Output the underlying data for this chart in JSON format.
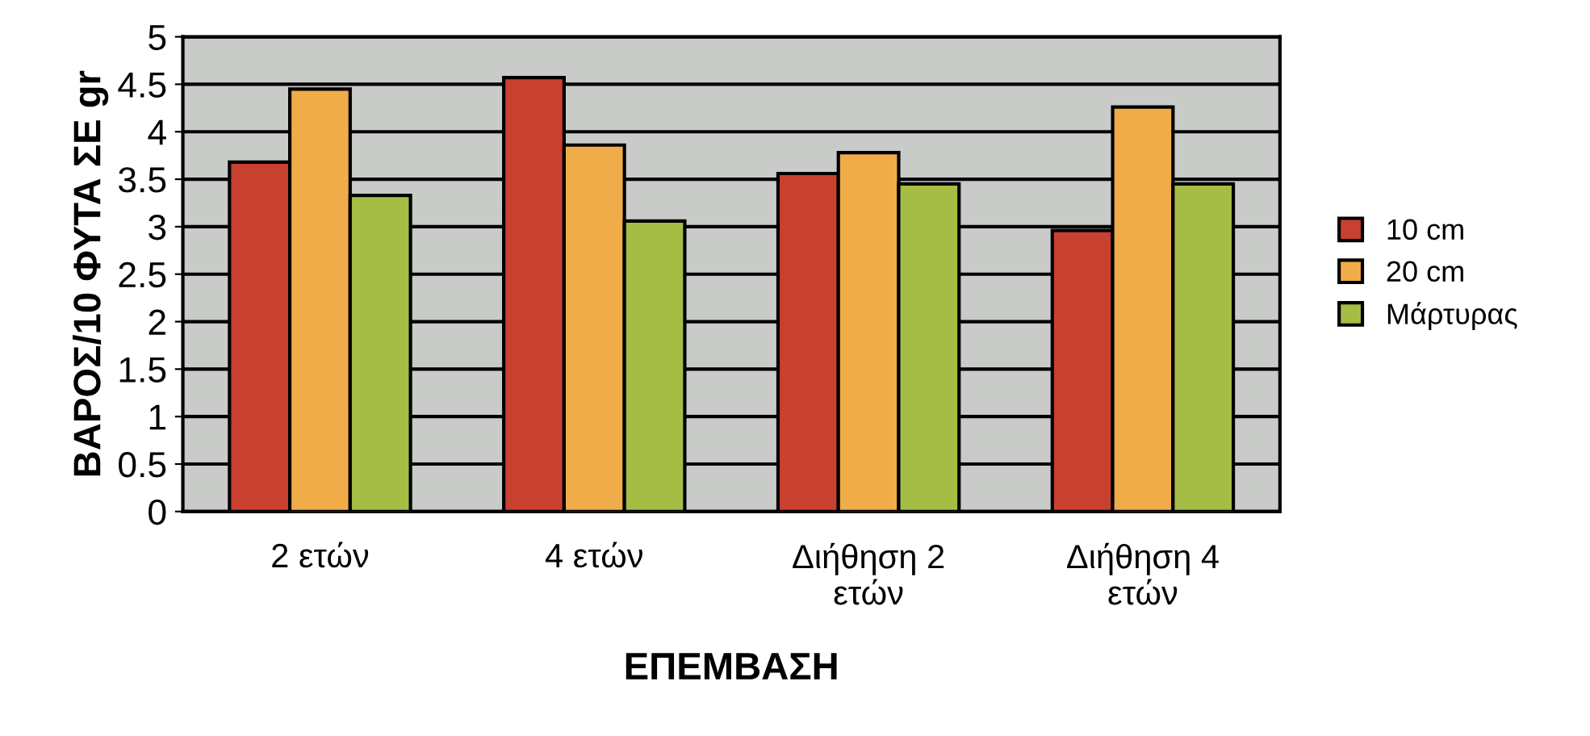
{
  "chart_data": {
    "type": "bar",
    "xlabel": "ΕΠΕΜΒΑΣΗ",
    "ylabel": "ΒΑΡΟΣ/10 ΦΥΤΑ ΣΕ gr",
    "categories": [
      "2 ετών",
      "4 ετών",
      "Διήθηση 2\nετών",
      "Διήθηση 4\nετών"
    ],
    "series": [
      {
        "name": "10 cm",
        "color": "#c8402f",
        "values": [
          3.68,
          4.57,
          3.56,
          2.96
        ]
      },
      {
        "name": "20 cm",
        "color": "#f0ac48",
        "values": [
          4.45,
          3.86,
          3.78,
          4.26
        ]
      },
      {
        "name": "Μάρτυρας",
        "color": "#a5bd45",
        "values": [
          3.33,
          3.06,
          3.45,
          3.45
        ]
      }
    ],
    "ylim": [
      0,
      5
    ],
    "yticks": [
      0,
      0.5,
      1,
      1.5,
      2,
      2.5,
      3,
      3.5,
      4,
      4.5,
      5
    ],
    "grid": "y",
    "legend": "right"
  }
}
